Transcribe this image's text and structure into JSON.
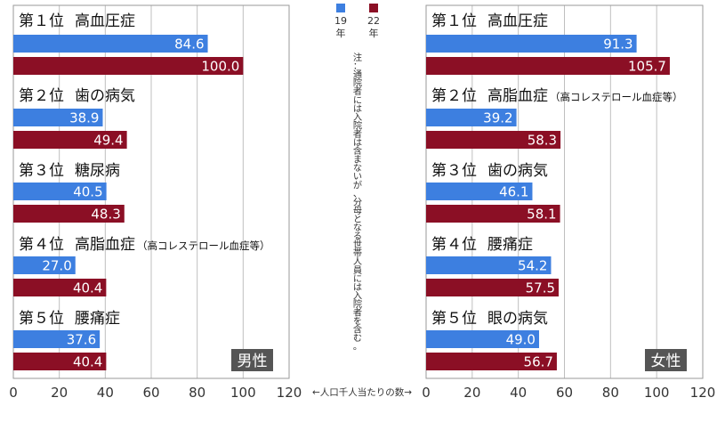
{
  "legend": {
    "items": [
      {
        "label": "19\n年",
        "color": "#3d7fe0"
      },
      {
        "label": "22\n年",
        "color": "#8b0f25"
      }
    ]
  },
  "note": "注：通院者には入院者は含まないが、分母となる世帯人員には入院者を含む。",
  "axis_caption": "←人口千人当たりの数→",
  "chart_data": [
    {
      "type": "bar",
      "panel_label": "男性",
      "orientation": "horizontal",
      "categories": [
        {
          "rank": "第１位",
          "name": "高血圧症",
          "suffix": ""
        },
        {
          "rank": "第２位",
          "name": "歯の病気",
          "suffix": ""
        },
        {
          "rank": "第３位",
          "name": "糖尿病",
          "suffix": ""
        },
        {
          "rank": "第４位",
          "name": "高脂血症",
          "suffix": "（高コレステロール血症等）"
        },
        {
          "rank": "第５位",
          "name": "腰痛症",
          "suffix": ""
        }
      ],
      "series": [
        {
          "name": "19年",
          "color": "#3d7fe0",
          "values": [
            84.6,
            38.9,
            40.5,
            27.0,
            37.6
          ]
        },
        {
          "name": "22年",
          "color": "#8b0f25",
          "values": [
            100.0,
            49.4,
            48.3,
            40.4,
            40.4
          ]
        }
      ],
      "xlim": [
        0,
        120
      ],
      "ticks": [
        0,
        20,
        40,
        60,
        80,
        100,
        120
      ],
      "grid": true
    },
    {
      "type": "bar",
      "panel_label": "女性",
      "orientation": "horizontal",
      "categories": [
        {
          "rank": "第１位",
          "name": "高血圧症",
          "suffix": ""
        },
        {
          "rank": "第２位",
          "name": "高脂血症",
          "suffix": "（高コレステロール血症等）"
        },
        {
          "rank": "第３位",
          "name": "歯の病気",
          "suffix": ""
        },
        {
          "rank": "第４位",
          "name": "腰痛症",
          "suffix": ""
        },
        {
          "rank": "第５位",
          "name": "眼の病気",
          "suffix": ""
        }
      ],
      "series": [
        {
          "name": "19年",
          "color": "#3d7fe0",
          "values": [
            91.3,
            39.2,
            46.1,
            54.2,
            49.0
          ]
        },
        {
          "name": "22年",
          "color": "#8b0f25",
          "values": [
            105.7,
            58.3,
            58.1,
            57.5,
            56.7
          ]
        }
      ],
      "xlim": [
        0,
        120
      ],
      "ticks": [
        0,
        20,
        40,
        60,
        80,
        100,
        120
      ],
      "grid": true
    }
  ]
}
